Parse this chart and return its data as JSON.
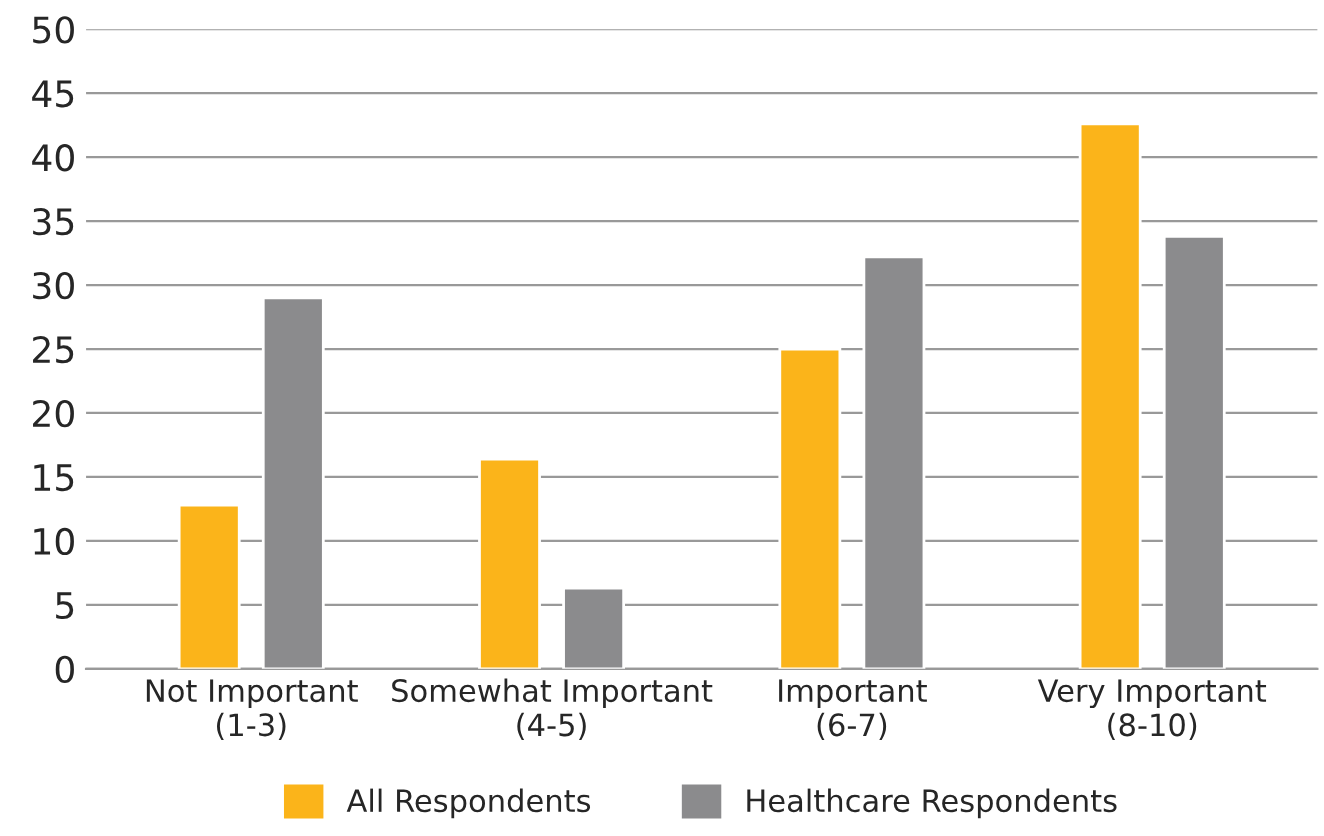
{
  "chart_data": {
    "type": "bar",
    "categories": [
      "Not Important\n(1-3)",
      "Somewhat Important\n(4-5)",
      "Important\n(6-7)",
      "Very Important\n(8-10)"
    ],
    "series": [
      {
        "name": "All Respondents",
        "color": "#fbb41a",
        "values": [
          12.8,
          16.4,
          25,
          42.6
        ]
      },
      {
        "name": "Healthcare Respondents",
        "color": "#8b8b8d",
        "values": [
          29,
          6.3,
          32.2,
          33.8
        ]
      }
    ],
    "ylim": [
      0,
      50
    ],
    "yticks": [
      0,
      5,
      10,
      15,
      20,
      25,
      30,
      35,
      40,
      45,
      50
    ],
    "grid": "y",
    "legend": "bottom"
  }
}
